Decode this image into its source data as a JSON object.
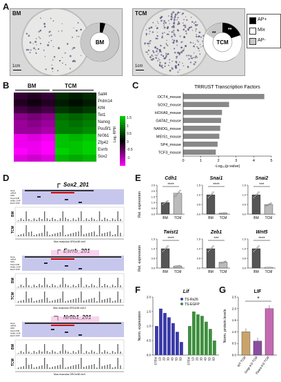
{
  "panel_labels": {
    "A": "A",
    "B": "B",
    "C": "C",
    "D": "D",
    "E": "E",
    "F": "F",
    "G": "G"
  },
  "panelA": {
    "bm": {
      "label": "BM",
      "donut_label": "BM",
      "scale": "1cm"
    },
    "tcm": {
      "label": "TCM",
      "donut_label": "TCM",
      "scale": "1cm",
      "stars_left": "**",
      "stars_right": "**"
    },
    "legend": [
      {
        "label": "AP+",
        "color": "#000000"
      },
      {
        "label": "Mix",
        "color": "#ffffff"
      },
      {
        "label": "AP-",
        "color": "#c8c8c8"
      }
    ]
  },
  "panelB": {
    "col_groups": [
      "BM",
      "TCM"
    ],
    "genes": [
      "Sall4",
      "Prdm14",
      "Klf4",
      "Tet1",
      "Nanog",
      "Pou5f1",
      "Nr0b1",
      "Zfp42",
      "Esrrb",
      "Sox2"
    ],
    "scale_title": "Log₂ RPM",
    "scale_ticks": [
      "1.5",
      "1",
      "0.5",
      "0",
      "-0.5",
      "-1",
      "-1.5"
    ],
    "colors": {
      "high": "#00d200",
      "mid": "#000000",
      "low": "#ff00ff"
    }
  },
  "chart_data": [
    {
      "type": "bar",
      "title": "TRRUST Transcription Factors",
      "orientation": "horizontal",
      "categories": [
        "OCT4_mouse",
        "SOX2_mouse",
        "HOXA9_mouse",
        "GATA2_mouse",
        "NANOG_mouse",
        "MEIS1_mouse",
        "SP4_mouse",
        "TCF3_mouse"
      ],
      "values": [
        4.6,
        2.6,
        2.2,
        2.15,
        2.1,
        2.05,
        1.95,
        1.85
      ],
      "xlabel": "-Log₁₀(p-value)",
      "xlim": [
        0,
        5
      ],
      "xticks": [
        "0",
        "1",
        "2",
        "3",
        "4",
        "5"
      ],
      "color": "#888888"
    },
    {
      "type": "bar",
      "panel": "E",
      "ylabel": "Rel. expression",
      "subplots": [
        {
          "gene": "Cdh1",
          "categories": [
            "BM",
            "TCM"
          ],
          "values": [
            1.0,
            1.8
          ],
          "ylim": [
            0,
            2.5
          ],
          "yticks": [
            "0.0",
            "0.5",
            "1.0",
            "1.5",
            "2.0",
            "2.5"
          ],
          "sig": "****"
        },
        {
          "gene": "Snai1",
          "categories": [
            "BM",
            "TCM"
          ],
          "values": [
            1.0,
            0.05
          ],
          "ylim": [
            0,
            1.5
          ],
          "yticks": [
            "0.0",
            "0.5",
            "1.0",
            "1.5"
          ],
          "sig": "****"
        },
        {
          "gene": "Snai2",
          "categories": [
            "BM",
            "TCM"
          ],
          "values": [
            1.0,
            0.5
          ],
          "ylim": [
            0,
            1.5
          ],
          "yticks": [
            "0.0",
            "0.5",
            "1.0",
            "1.5"
          ],
          "sig": "***"
        },
        {
          "gene": "Twist1",
          "categories": [
            "BM",
            "TCM"
          ],
          "values": [
            1.0,
            0.1
          ],
          "ylim": [
            0,
            1.5
          ],
          "yticks": [
            "0.0",
            "0.5",
            "1.0",
            "1.5"
          ],
          "sig": "****"
        },
        {
          "gene": "Zeb1",
          "categories": [
            "BM",
            "TCM"
          ],
          "values": [
            1.0,
            0.3
          ],
          "ylim": [
            0,
            1.5
          ],
          "yticks": [
            "0.0",
            "0.5",
            "1.0",
            "1.5"
          ],
          "sig": "***"
        },
        {
          "gene": "Wnt5",
          "categories": [
            "BM",
            "TCM"
          ],
          "values": [
            1.0,
            0.02
          ],
          "ylim": [
            0,
            1.5
          ],
          "yticks": [
            "0.0",
            "0.5",
            "1.0",
            "1.5"
          ],
          "sig": "****"
        }
      ],
      "colors": {
        "BM": "#555555",
        "TCM": "#bbbbbb"
      }
    },
    {
      "type": "bar",
      "panel": "F",
      "title": "Lif",
      "ylabel": "Norm. expression",
      "ylim": [
        0,
        2.0
      ],
      "yticks": [
        "0.0",
        "0.5",
        "1.0",
        "1.5",
        "2.0"
      ],
      "categories": [
        "STEM",
        "1D",
        "2D",
        "3D",
        "4D",
        "5D",
        "6D"
      ],
      "series": [
        {
          "name": "TS-Rs26",
          "values": [
            1.0,
            1.6,
            1.45,
            1.3,
            1.1,
            0.8,
            0.45
          ],
          "color": "#3a3aa8"
        },
        {
          "name": "TS-EGFP",
          "values": [
            1.0,
            1.5,
            1.4,
            1.35,
            1.15,
            0.9,
            0.5
          ],
          "color": "#3f8f3f"
        }
      ]
    },
    {
      "type": "bar",
      "panel": "G",
      "title": "LIF",
      "ylabel": "Norm. protein levels",
      "ylim": [
        0,
        2.5
      ],
      "yticks": [
        "0.0",
        "0.5",
        "1.0",
        "1.5",
        "2.0",
        "2.5"
      ],
      "categories": [
        "WT TCM",
        "Smgr KO TCM",
        "Ppara KO TCM"
      ],
      "values": [
        1.0,
        0.6,
        2.0
      ],
      "colors": [
        "#c9a46a",
        "#8a4fa0",
        "#c46ab2"
      ],
      "sig": "*"
    }
  ],
  "panelD": {
    "tracks": [
      {
        "gene": "Sox2_201",
        "rows": [
          "Gene",
          "mRNA",
          "CDS",
          "Sox2 ChIP",
          "Nr0b1 ChIP",
          "Esrrb ChIP"
        ],
        "bm": "BM",
        "tcm": "TCM",
        "axis": "Mus musculus GRCm38 chr3"
      },
      {
        "gene": "Esrrb_201",
        "rows": [
          "Gene",
          "mRNA",
          "CDS",
          "Sox2 ChIP",
          "Nr0b1 ChIP",
          "Esrrb ChIP"
        ],
        "bm": "BM",
        "tcm": "TCM",
        "axis": "Mus musculus GRCm38 chr12"
      },
      {
        "gene": "Nr0b1_201",
        "rows": [
          "Gene",
          "mRNA",
          "CDS",
          "Sox2 ChIP",
          "Nr0b1 ChIP",
          "Esrrb ChIP"
        ],
        "bm": "BM",
        "tcm": "TCM",
        "axis": "Mus musculus GRCm38 chrX"
      }
    ]
  }
}
